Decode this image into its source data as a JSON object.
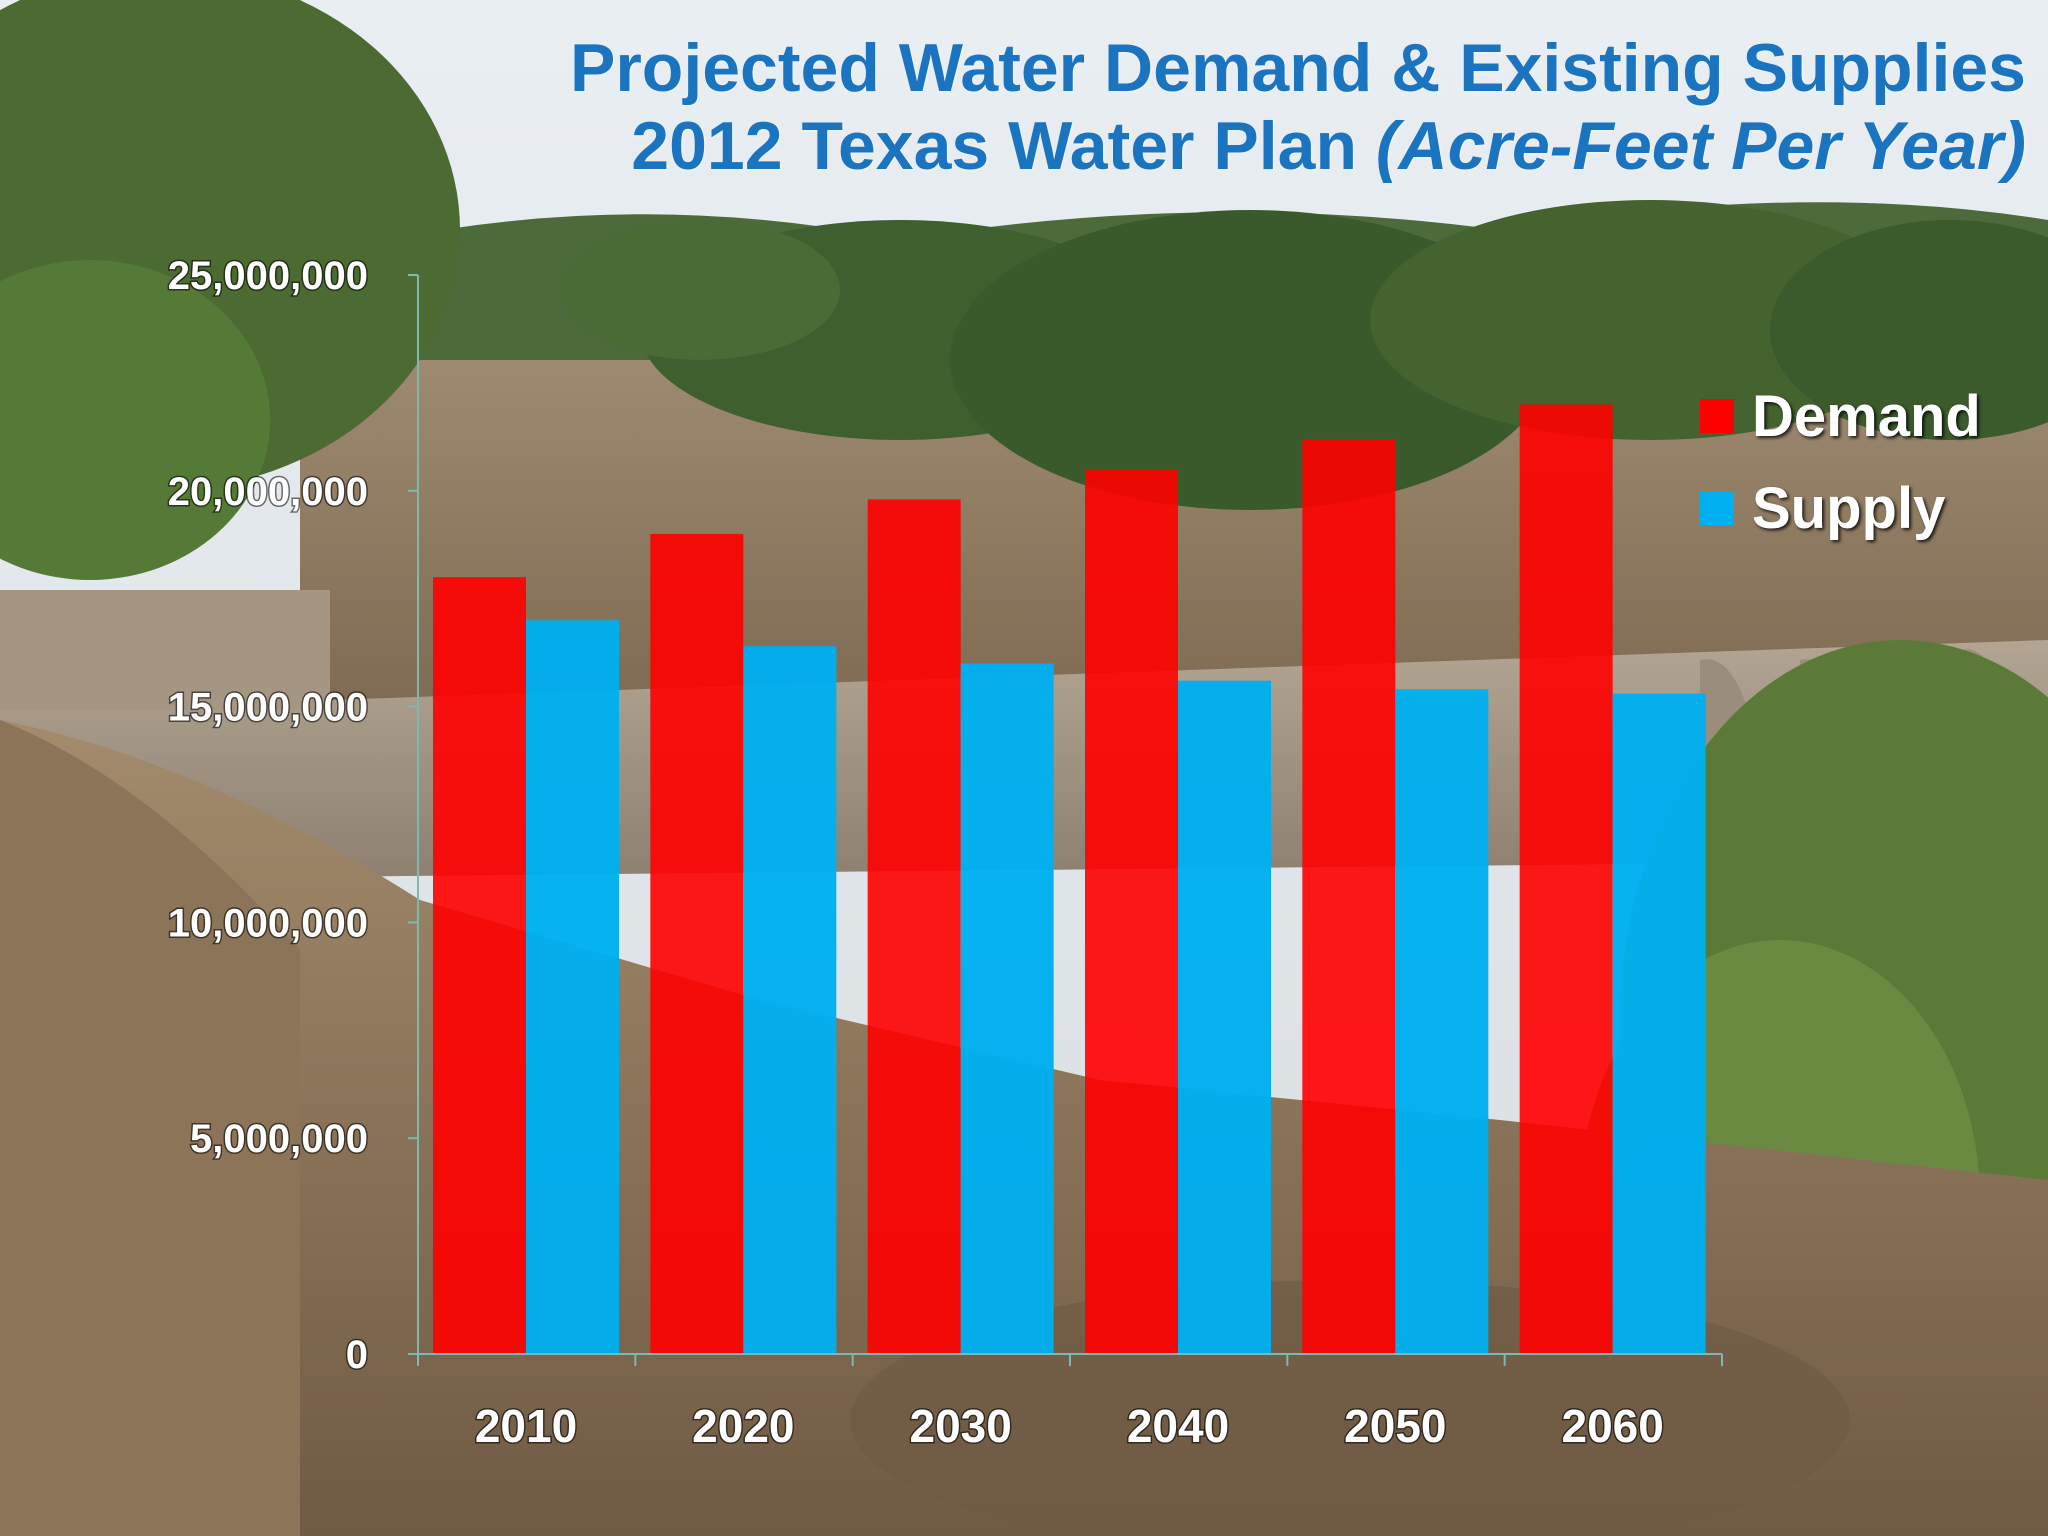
{
  "title": {
    "line1": "Projected Water Demand & Existing Supplies",
    "line2_main": "2012 Texas Water Plan ",
    "line2_italic": "(Acre-Feet Per Year)"
  },
  "colors": {
    "title": "#1a74c0",
    "demand": "#ff0000",
    "supply": "#00b0f0",
    "axis": "#7fb8b0",
    "tick_text": "#ffffff"
  },
  "legend": {
    "demand_label": "Demand",
    "supply_label": "Supply",
    "position": "top-right"
  },
  "chart_data": {
    "type": "bar",
    "title": "Projected Water Demand & Existing Supplies 2012 Texas Water Plan (Acre-Feet Per Year)",
    "categories": [
      "2010",
      "2020",
      "2030",
      "2040",
      "2050",
      "2060"
    ],
    "series": [
      {
        "name": "Demand",
        "values": [
          18000000,
          19000000,
          19800000,
          20500000,
          21200000,
          22000000
        ]
      },
      {
        "name": "Supply",
        "values": [
          17000000,
          16400000,
          16000000,
          15600000,
          15400000,
          15300000
        ]
      }
    ],
    "y_ticks": [
      0,
      5000000,
      10000000,
      15000000,
      20000000,
      25000000
    ],
    "y_tick_labels": [
      "0",
      "5,000,000",
      "10,000,000",
      "15,000,000",
      "20,000,000",
      "25,000,000"
    ],
    "xlabel": "",
    "ylabel": "",
    "ylim": [
      0,
      25000000
    ],
    "grid": false
  }
}
